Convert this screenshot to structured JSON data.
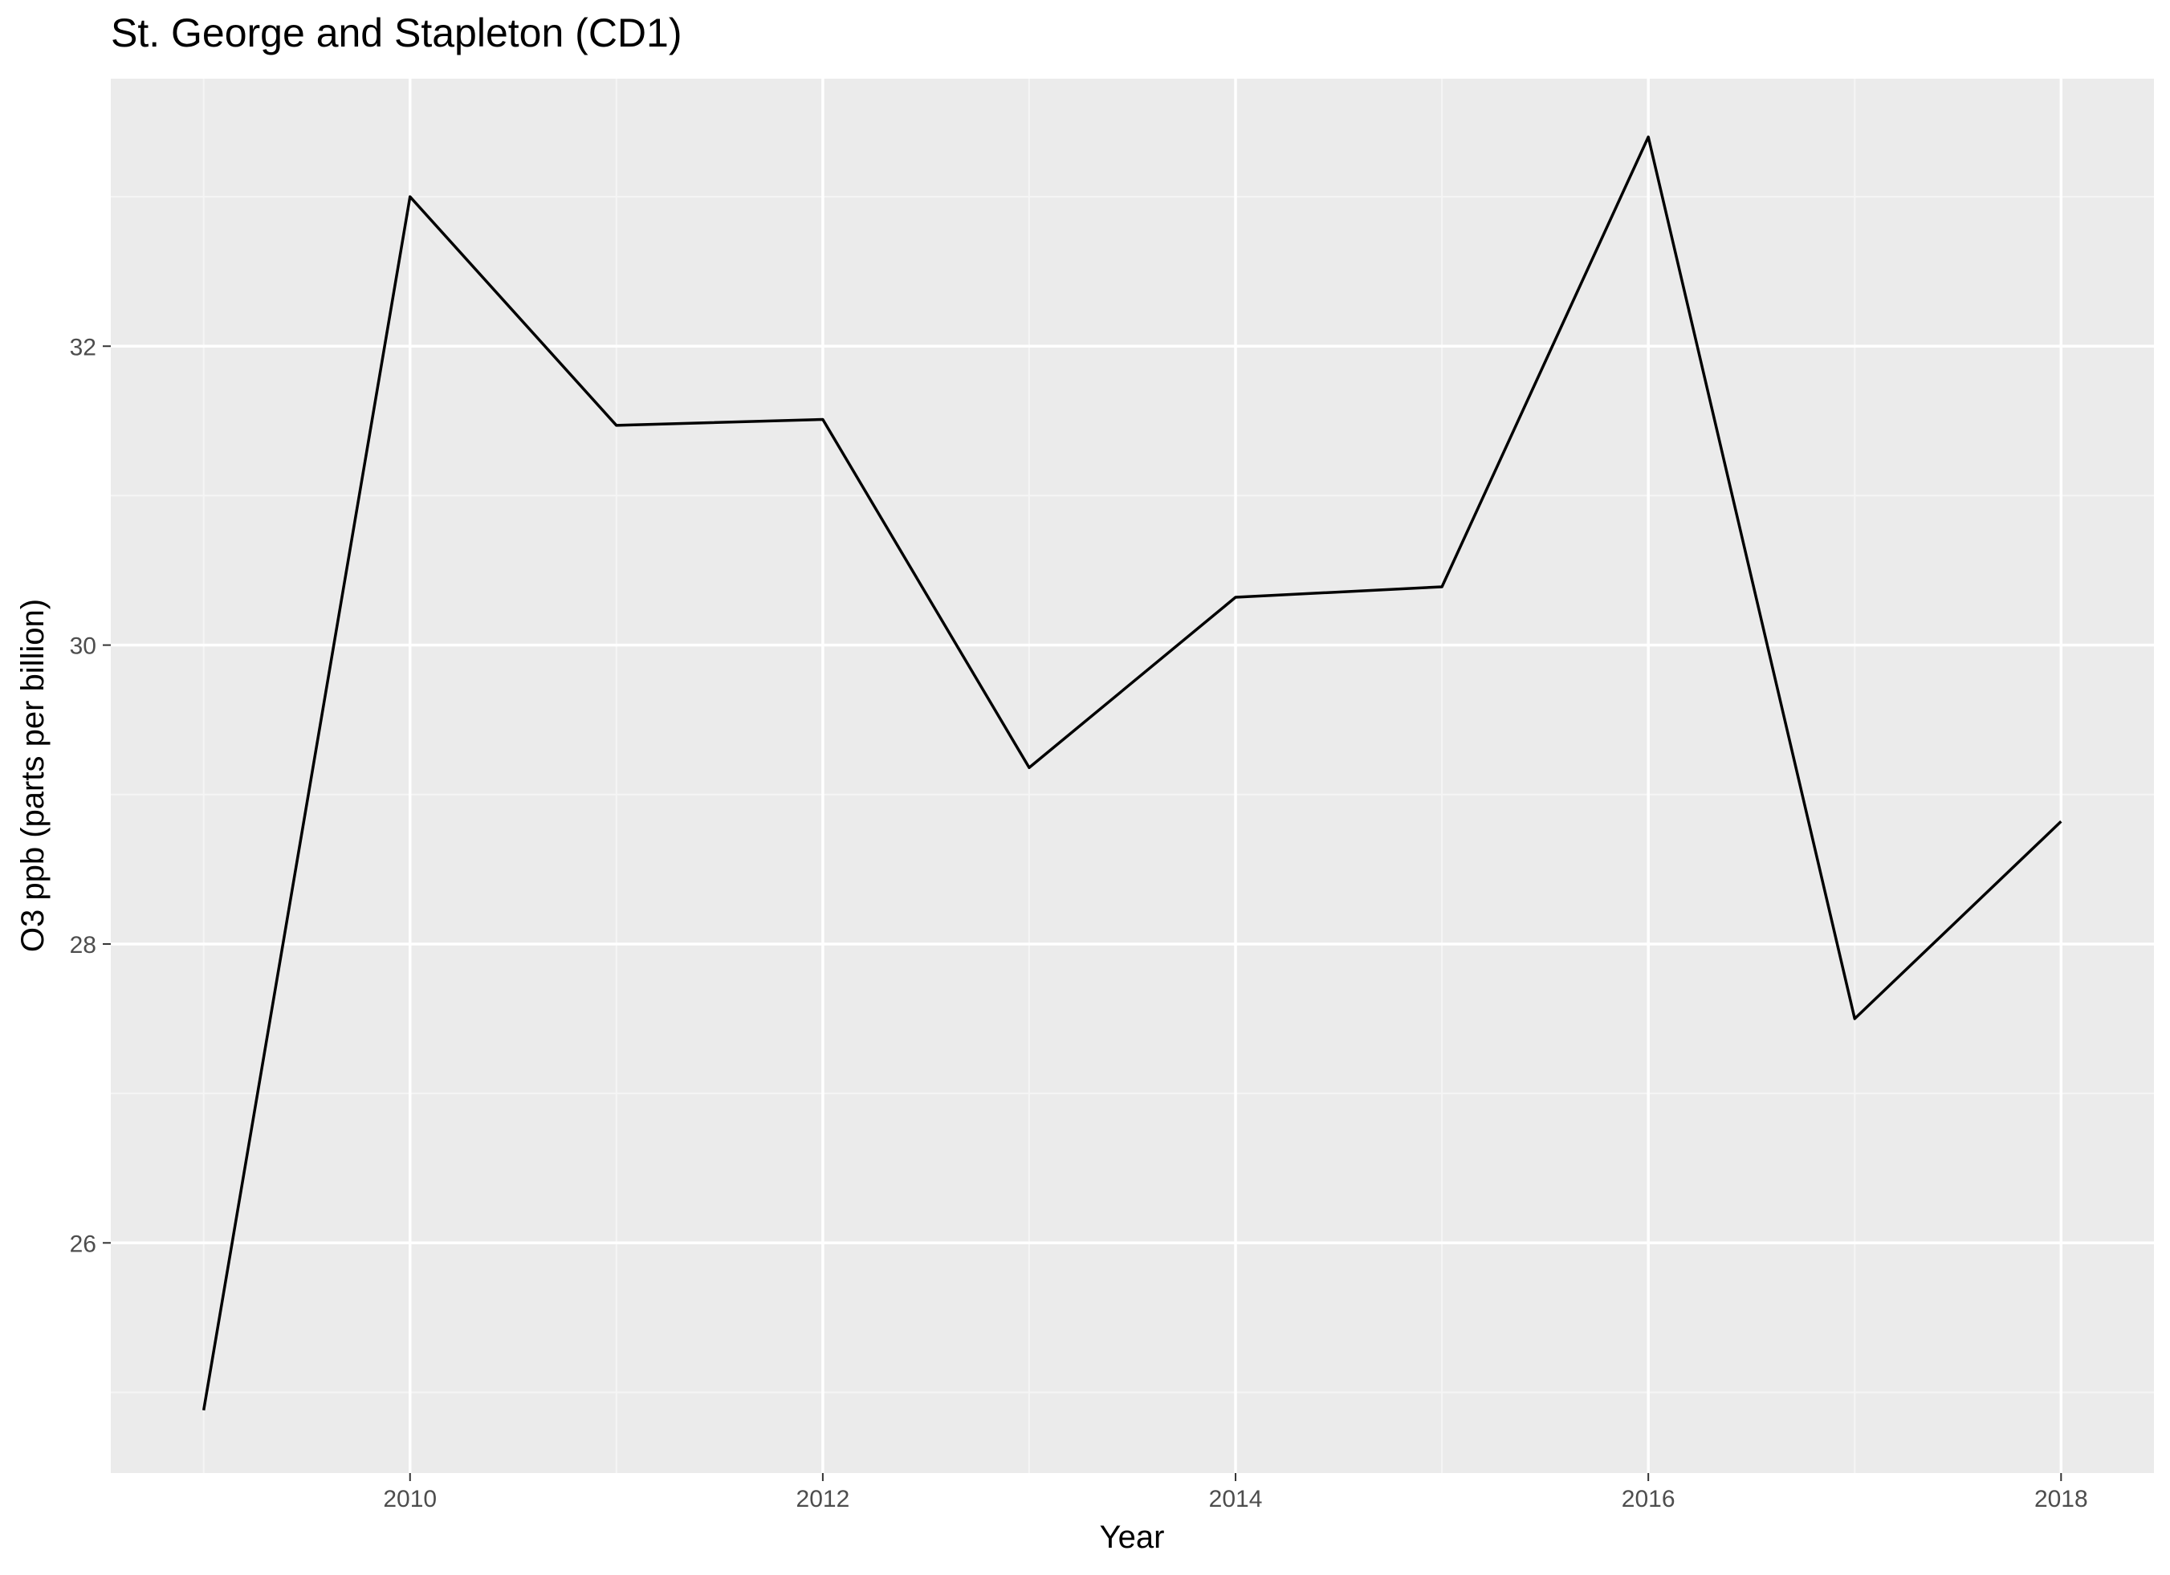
{
  "chart_data": {
    "type": "line",
    "title": "St. George and Stapleton (CD1)",
    "xlabel": "Year",
    "ylabel": "O3 ppb (parts per billion)",
    "xlim": [
      2008.55,
      2018.45
    ],
    "ylim": [
      24.46,
      33.79
    ],
    "x_ticks": [
      2010,
      2012,
      2014,
      2016,
      2018
    ],
    "y_ticks": [
      26,
      28,
      30,
      32
    ],
    "grid": true,
    "legend": "none",
    "series": [
      {
        "x": [
          2009,
          2010,
          2011,
          2012,
          2013,
          2014,
          2015,
          2016,
          2017,
          2018
        ],
        "y": [
          24.88,
          33.0,
          31.47,
          31.51,
          29.18,
          30.32,
          30.39,
          33.4,
          27.5,
          28.82
        ]
      }
    ]
  },
  "colors": {
    "panel_background": "#ebebeb",
    "grid_major": "#ffffff",
    "grid_minor": "#f5f5f5",
    "line": "#000000",
    "tick_text": "#4d4d4d",
    "tick_mark": "#333333"
  }
}
